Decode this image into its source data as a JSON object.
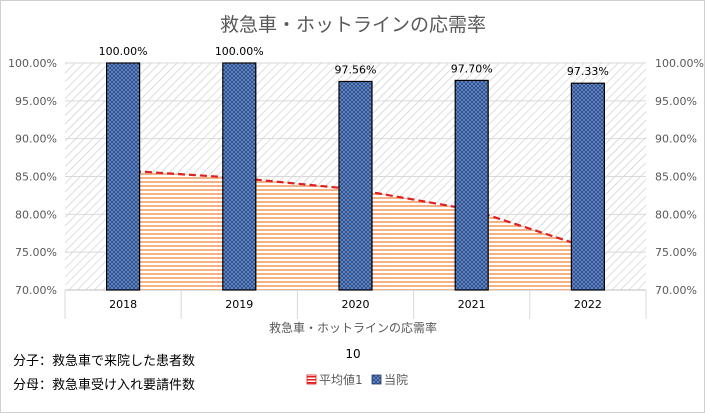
{
  "chart_data": {
    "type": "bar",
    "title": "救急車・ホットラインの応需率",
    "categories": [
      "2018",
      "2019",
      "2020",
      "2021",
      "2022"
    ],
    "series": [
      {
        "name": "平均値1",
        "chart_type": "area",
        "values": [
          85.8,
          84.8,
          83.3,
          80.6,
          75.6
        ],
        "fill_color": "#f4b183",
        "line_color": "#e02020"
      },
      {
        "name": "当院",
        "chart_type": "bar",
        "values": [
          100.0,
          100.0,
          97.56,
          97.7,
          97.33
        ],
        "data_labels": [
          "100.00%",
          "100.00%",
          "97.56%",
          "97.70%",
          "97.33%"
        ],
        "fill_color": "#2f5597"
      }
    ],
    "y_axis": {
      "min": 70,
      "max": 100,
      "step": 5,
      "tick_labels": [
        "70.00%",
        "75.00%",
        "80.00%",
        "85.00%",
        "90.00%",
        "95.00%",
        "100.00%"
      ],
      "secondary_tick_labels": [
        "70.00%",
        "75.00%",
        "80.00%",
        "85.00%",
        "90.00%",
        "95.00%",
        "100.00%"
      ]
    },
    "xlabel": "救急車・ホットラインの応需率",
    "x_sublabel": "10",
    "legend": {
      "position": "bottom",
      "entries": [
        "平均値1",
        "当院"
      ]
    }
  },
  "notes": {
    "numerator": "分子：救急車で来院した患者数",
    "denominator": "分母：救急車受け入れ要請件数"
  }
}
